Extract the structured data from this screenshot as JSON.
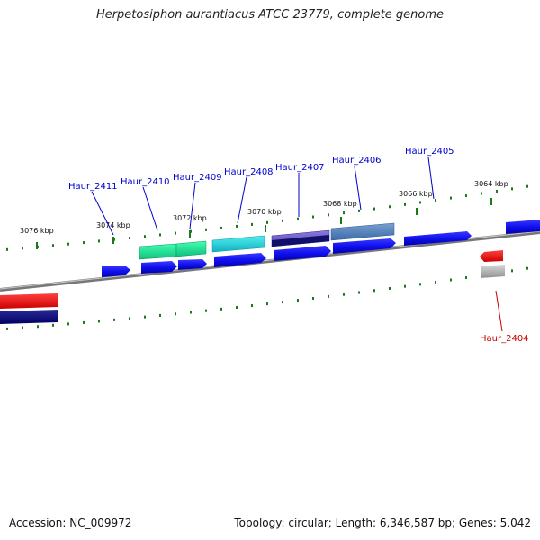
{
  "title": "Herpetosiphon aurantiacus ATCC 23779, complete genome",
  "footer": {
    "accession": "Accession: NC_009972",
    "topology": "Topology: circular; Length: 6,346,587 bp; Genes: 5,042"
  },
  "colors": {
    "label_default": "#0000cc",
    "label_highlight": "#cc0000",
    "tick": "#1a7a1a",
    "backbone": "#888888"
  },
  "kbp_labels": [
    {
      "text": "3076 kbp"
    },
    {
      "text": "3074 kbp"
    },
    {
      "text": "3072 kbp"
    },
    {
      "text": "3070 kbp"
    },
    {
      "text": "3068 kbp"
    },
    {
      "text": "3066 kbp"
    },
    {
      "text": "3064 kbp"
    }
  ],
  "gene_labels": [
    {
      "text": "Haur_2411",
      "highlight": false
    },
    {
      "text": "Haur_2410",
      "highlight": false
    },
    {
      "text": "Haur_2409",
      "highlight": false
    },
    {
      "text": "Haur_2408",
      "highlight": false
    },
    {
      "text": "Haur_2407",
      "highlight": false
    },
    {
      "text": "Haur_2406",
      "highlight": false
    },
    {
      "text": "Haur_2405",
      "highlight": false
    },
    {
      "text": "Haur_2404",
      "highlight": true
    }
  ]
}
